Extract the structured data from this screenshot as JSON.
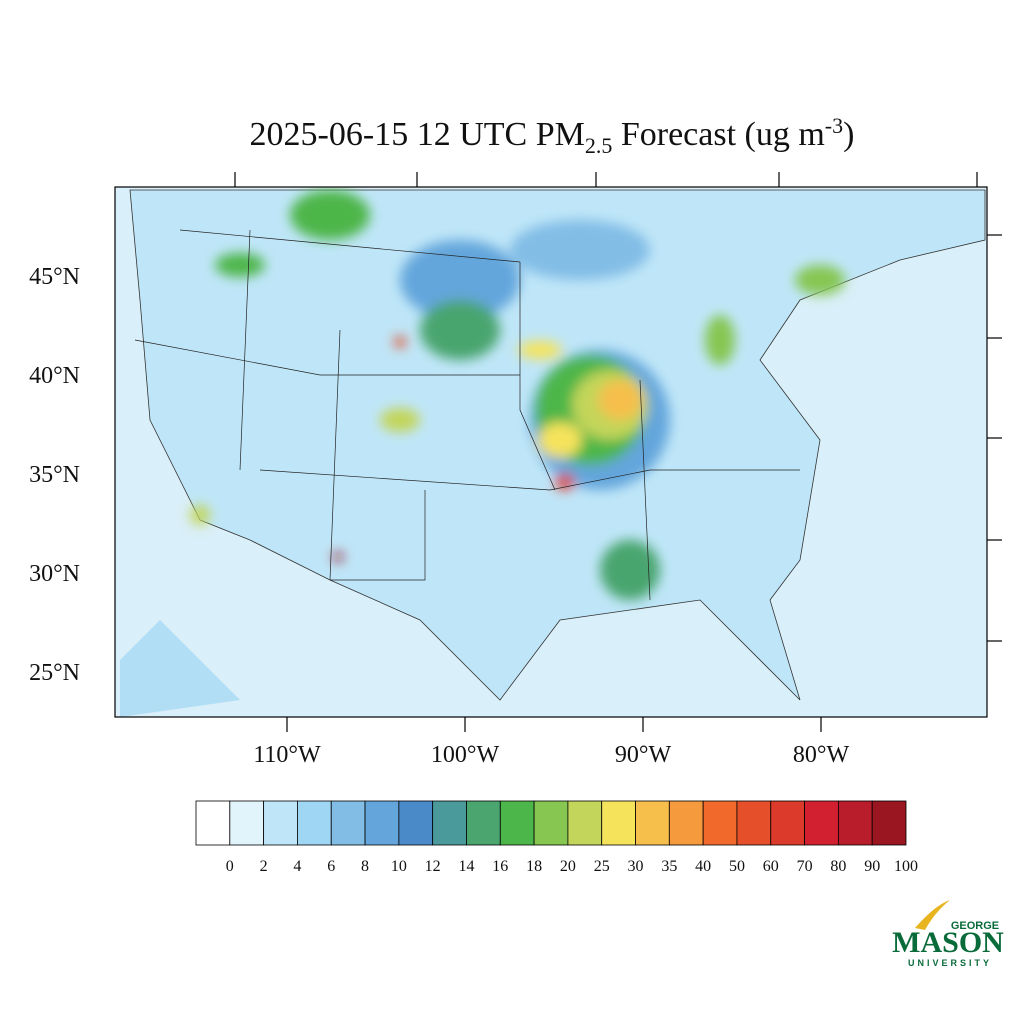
{
  "map": {
    "title": {
      "prefix": "2025-06-15 12 UTC PM",
      "subscript": "2.5",
      "middle": " Forecast (ug m",
      "superscript": "-3",
      "suffix": ")"
    },
    "lat_ticks": [
      {
        "value": 45,
        "label": "45°N"
      },
      {
        "value": 40,
        "label": "40°N"
      },
      {
        "value": 35,
        "label": "35°N"
      },
      {
        "value": 30,
        "label": "30°N"
      },
      {
        "value": 25,
        "label": "25°N"
      }
    ],
    "lon_ticks": [
      {
        "value": -110,
        "label": "110°W"
      },
      {
        "value": -100,
        "label": "100°W"
      },
      {
        "value": -90,
        "label": "90°W"
      },
      {
        "value": -80,
        "label": "80°W"
      }
    ],
    "colorbar": {
      "levels": [
        0,
        2,
        4,
        6,
        8,
        10,
        12,
        14,
        16,
        18,
        20,
        25,
        30,
        35,
        40,
        50,
        60,
        70,
        80,
        90,
        100
      ],
      "colors": [
        "#ffffff",
        "#e1f3fb",
        "#bfe6f8",
        "#9fd6f4",
        "#82bde6",
        "#64a6dc",
        "#4a8ac8",
        "#4a9a9c",
        "#4aa56e",
        "#4db64a",
        "#86c651",
        "#c3d55a",
        "#f5e35c",
        "#f6bf4c",
        "#f59a3d",
        "#f16a2c",
        "#e5502b",
        "#dc3a2a",
        "#d22030",
        "#b91c2a",
        "#9a1620"
      ]
    },
    "logo": {
      "top": "GEORGE",
      "main": "MASON",
      "bottom": "UNIVERSITY"
    }
  }
}
